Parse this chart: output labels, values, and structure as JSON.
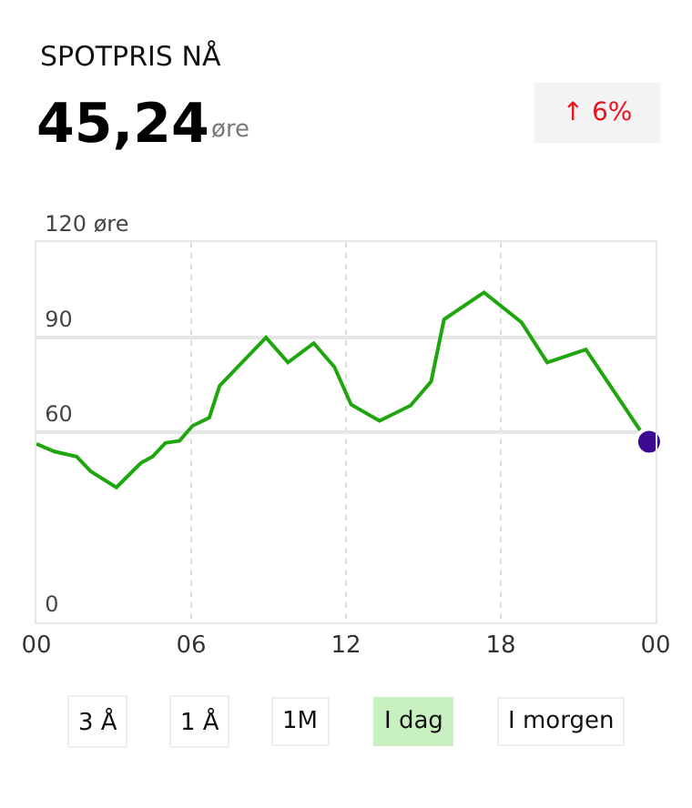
{
  "chart_data": {
    "type": "line",
    "title": "SPOTPRIS NÅ",
    "subtitle": "45,24",
    "annotations": [
      "øre",
      "↑ 6%",
      "3 Å",
      "1 Å",
      "1M",
      "I dag",
      "I morgen"
    ],
    "series": [
      {
        "color": "#1fa60f",
        "x": [
          0,
          0.7,
          1.56,
          2.1,
          3.1,
          4.05,
          4.5,
          5.0,
          5.55,
          6.05,
          6.7,
          7.1,
          8.9,
          9.75,
          10.75,
          11.55,
          12.2,
          13.3,
          14.5,
          15.3,
          15.8,
          17.35,
          18.8,
          19.8,
          21.3,
          23.4
        ],
        "values": [
          56.3,
          53.9,
          52.3,
          47.7,
          42.6,
          50.3,
          52.3,
          56.6,
          57.3,
          62,
          64.6,
          74.6,
          89.9,
          82,
          88.1,
          80.6,
          68.7,
          63.6,
          68.4,
          76,
          95.6,
          104.1,
          94.7,
          82,
          86.1,
          60.6
        ]
      },
      {
        "type": "scatter",
        "color": "#3d0a91",
        "marker": "circle",
        "x": [
          23.75
        ],
        "values": [
          57
        ]
      }
    ],
    "xlim": [
      0,
      24
    ],
    "xticks": [
      {
        "value": 0,
        "label": "00"
      },
      {
        "value": 6,
        "label": "06"
      },
      {
        "value": 12,
        "label": "12"
      },
      {
        "value": 18,
        "label": "18"
      },
      {
        "value": 24,
        "label": "00"
      }
    ],
    "ylim": [
      0,
      120
    ],
    "yticks": [
      0,
      60,
      90,
      {
        "value": 120,
        "label": "120 øre"
      }
    ],
    "grid": true
  }
}
